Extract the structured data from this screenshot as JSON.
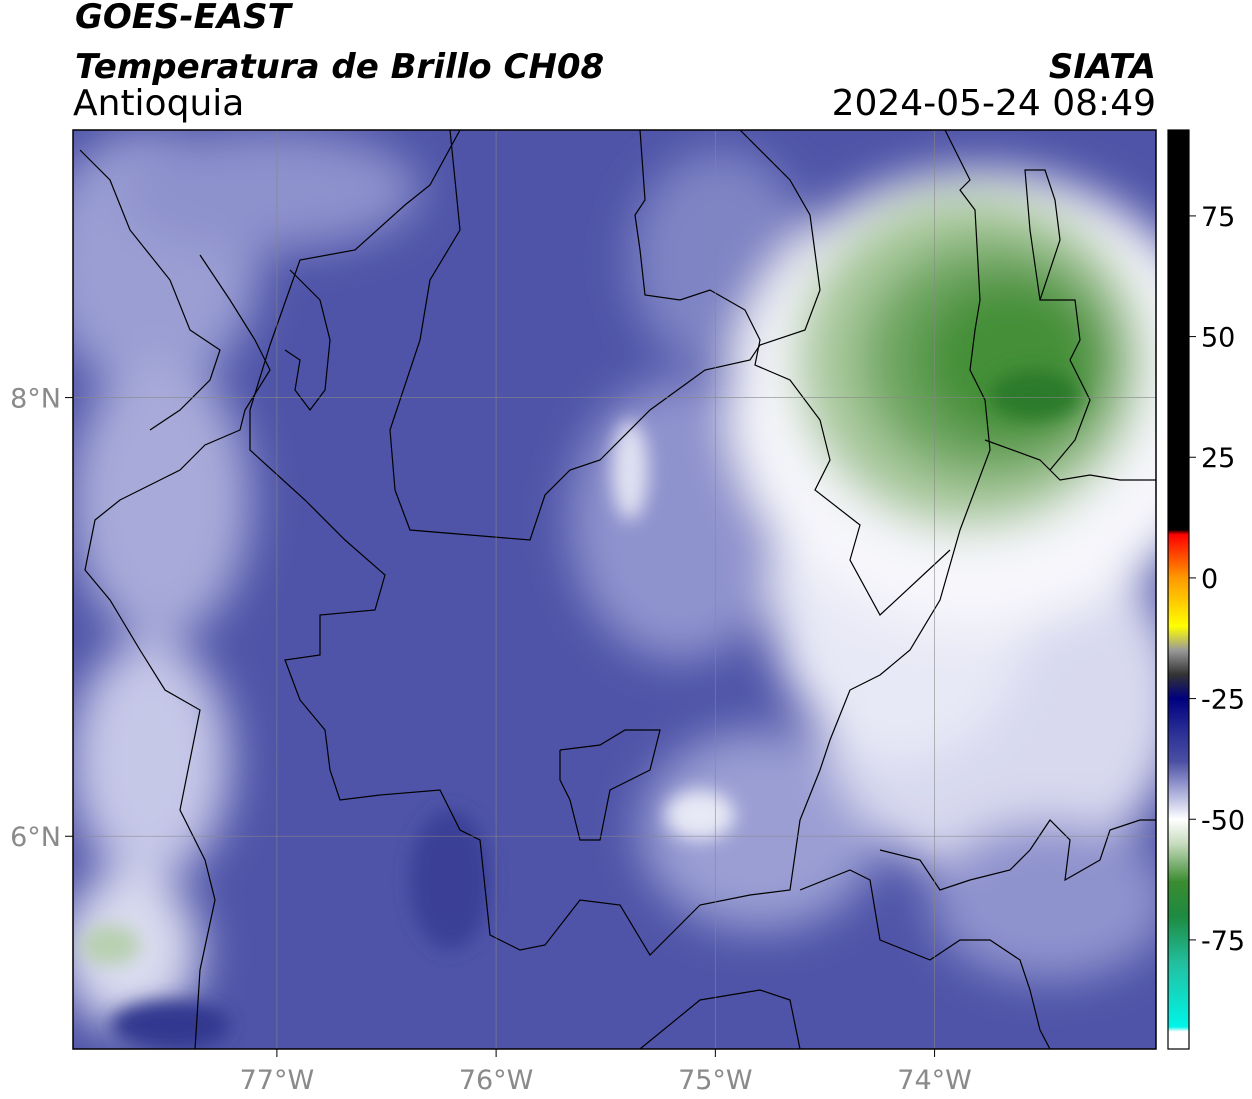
{
  "header": {
    "satellite": "GOES-EAST",
    "product": "Temperatura de Brillo CH08",
    "region": "Antioquia",
    "agency": "SIATA",
    "datetime": "2024-05-24 08:49"
  },
  "map": {
    "lon_lim": [
      -77.93,
      -72.99
    ],
    "lat_lim": [
      5.03,
      9.22
    ],
    "lon_ticks": [
      {
        "value": -77,
        "label": "77°W"
      },
      {
        "value": -76,
        "label": "76°W"
      },
      {
        "value": -75,
        "label": "75°W"
      },
      {
        "value": -74,
        "label": "74°W"
      }
    ],
    "lat_ticks": [
      {
        "value": 8,
        "label": "8°N"
      },
      {
        "value": 6,
        "label": "6°N"
      }
    ],
    "grid": true
  },
  "colorbar": {
    "lim": [
      -97.6,
      92.8
    ],
    "ticks": [
      75,
      50,
      25,
      0,
      -25,
      -50,
      -75
    ],
    "stops": [
      {
        "value": 92.8,
        "color": "#000000"
      },
      {
        "value": 10,
        "color": "#000000"
      },
      {
        "value": 9,
        "color": "#ff0000"
      },
      {
        "value": 0,
        "color": "#ff9900"
      },
      {
        "value": -10,
        "color": "#ffff00"
      },
      {
        "value": -15,
        "color": "#999999"
      },
      {
        "value": -20,
        "color": "#333333"
      },
      {
        "value": -25,
        "color": "#00007f"
      },
      {
        "value": -32,
        "color": "#2a2f96"
      },
      {
        "value": -38,
        "color": "#4b4fa3"
      },
      {
        "value": -45,
        "color": "#b3b6de"
      },
      {
        "value": -50,
        "color": "#ffffff"
      },
      {
        "value": -55,
        "color": "#c8dcbf"
      },
      {
        "value": -63,
        "color": "#3a8c30"
      },
      {
        "value": -70,
        "color": "#1e8a40"
      },
      {
        "value": -80,
        "color": "#22c0a0"
      },
      {
        "value": -93,
        "color": "#00f5e8"
      },
      {
        "value": -94,
        "color": "#ffffff"
      },
      {
        "value": -97.6,
        "color": "#ffffff"
      }
    ]
  }
}
